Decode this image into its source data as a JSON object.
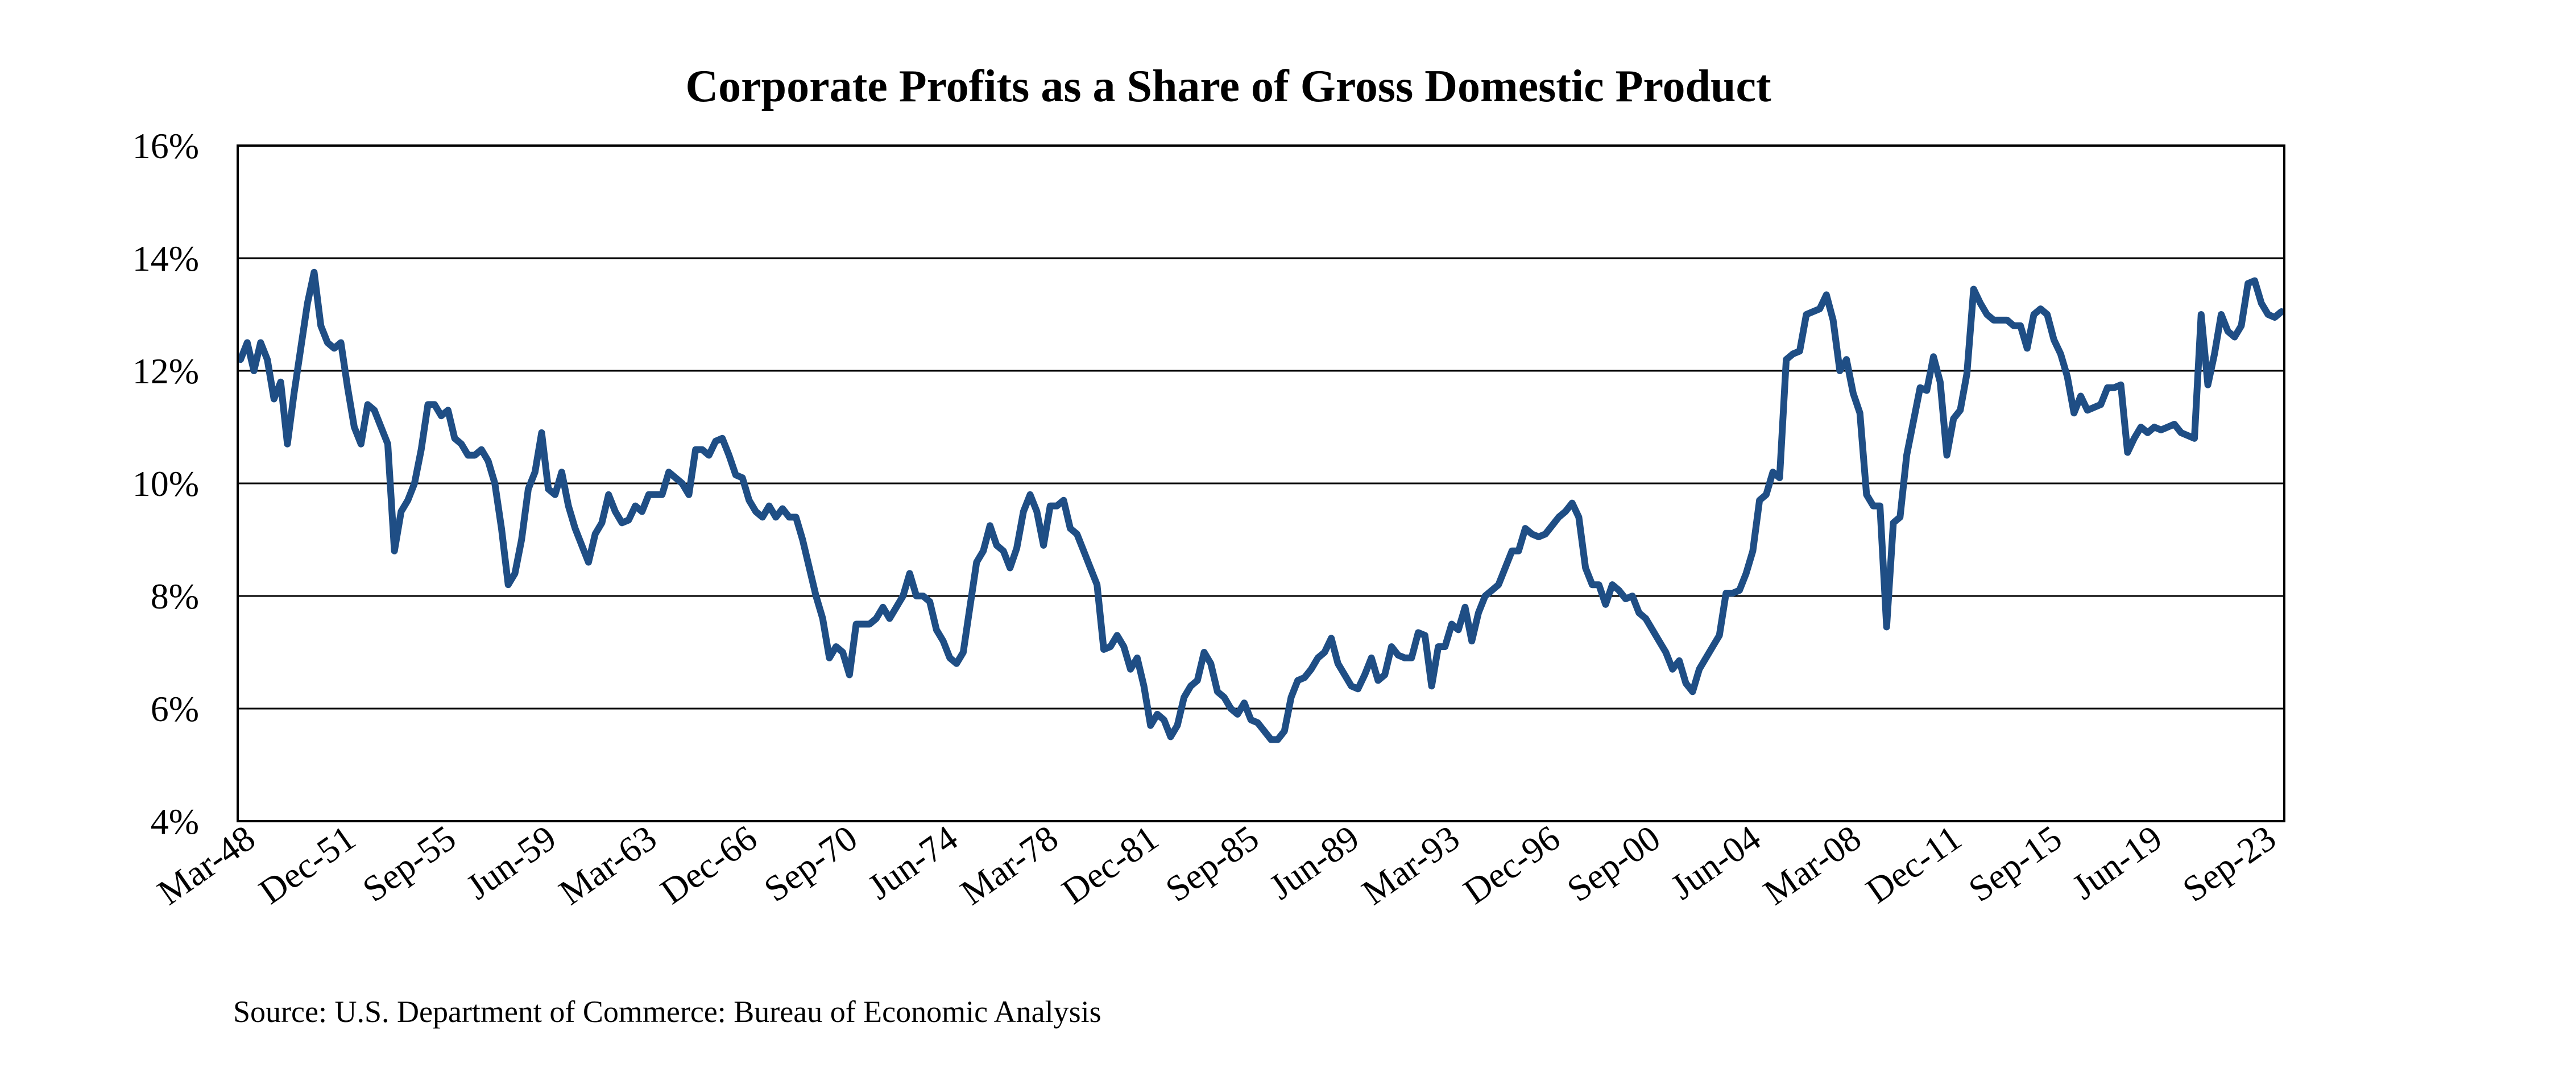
{
  "colors": {
    "line": "#1F4E85",
    "grid": "#000000",
    "background": "#ffffff"
  },
  "source": "Source: U.S. Department of Commerce: Bureau of Economic Analysis",
  "chart_data": {
    "type": "line",
    "title": "Corporate Profits as a Share of Gross Domestic Product",
    "xlabel": "",
    "ylabel": "",
    "ylim": [
      4,
      16
    ],
    "y_ticks": [
      4,
      6,
      8,
      10,
      12,
      14,
      16
    ],
    "y_tick_labels": [
      "4%",
      "6%",
      "8%",
      "10%",
      "12%",
      "14%",
      "16%"
    ],
    "x_tick_labels": [
      "Mar-48",
      "Dec-51",
      "Sep-55",
      "Jun-59",
      "Mar-63",
      "Dec-66",
      "Sep-70",
      "Jun-74",
      "Mar-78",
      "Dec-81",
      "Sep-85",
      "Jun-89",
      "Mar-93",
      "Dec-96",
      "Sep-00",
      "Jun-04",
      "Mar-08",
      "Dec-11",
      "Sep-15",
      "Jun-19",
      "Sep-23"
    ],
    "x_tick_index": [
      0,
      15,
      30,
      45,
      60,
      75,
      90,
      105,
      120,
      135,
      150,
      165,
      180,
      195,
      210,
      225,
      240,
      255,
      270,
      285,
      302
    ],
    "grid": true,
    "legend": "none",
    "series": [
      {
        "name": "Corporate Profits / GDP (%)",
        "x_start": "Mar-48",
        "frequency": "quarterly",
        "values": [
          12.2,
          12.5,
          12.0,
          12.5,
          12.2,
          11.5,
          11.8,
          10.7,
          11.6,
          12.4,
          13.2,
          13.75,
          12.8,
          12.5,
          12.4,
          12.5,
          11.7,
          11.0,
          10.7,
          11.4,
          11.3,
          11.0,
          10.7,
          8.8,
          9.5,
          9.7,
          10.0,
          10.6,
          11.4,
          11.4,
          11.2,
          11.3,
          10.8,
          10.7,
          10.5,
          10.5,
          10.6,
          10.4,
          10.0,
          9.2,
          8.2,
          8.4,
          9.0,
          9.9,
          10.2,
          10.9,
          9.9,
          9.8,
          10.2,
          9.6,
          9.2,
          8.9,
          8.6,
          9.1,
          9.3,
          9.8,
          9.5,
          9.3,
          9.35,
          9.6,
          9.5,
          9.8,
          9.8,
          9.8,
          10.2,
          10.1,
          10.0,
          9.8,
          10.6,
          10.6,
          10.5,
          10.75,
          10.8,
          10.5,
          10.15,
          10.1,
          9.7,
          9.5,
          9.4,
          9.6,
          9.4,
          9.55,
          9.4,
          9.4,
          9.0,
          8.5,
          8.0,
          7.6,
          6.9,
          7.1,
          7.0,
          6.6,
          7.5,
          7.5,
          7.5,
          7.6,
          7.8,
          7.6,
          7.8,
          8.0,
          8.4,
          8.0,
          8.0,
          7.9,
          7.4,
          7.2,
          6.9,
          6.8,
          7.0,
          7.8,
          8.6,
          8.8,
          9.25,
          8.9,
          8.8,
          8.5,
          8.85,
          9.5,
          9.8,
          9.5,
          8.9,
          9.6,
          9.6,
          9.7,
          9.2,
          9.1,
          8.8,
          8.5,
          8.2,
          7.05,
          7.1,
          7.3,
          7.1,
          6.7,
          6.9,
          6.4,
          5.7,
          5.9,
          5.8,
          5.5,
          5.7,
          6.2,
          6.4,
          6.5,
          7.0,
          6.8,
          6.3,
          6.2,
          6.0,
          5.9,
          6.1,
          5.8,
          5.75,
          5.6,
          5.45,
          5.45,
          5.6,
          6.2,
          6.5,
          6.55,
          6.7,
          6.9,
          7.0,
          7.25,
          6.8,
          6.6,
          6.4,
          6.35,
          6.6,
          6.9,
          6.5,
          6.6,
          7.1,
          6.95,
          6.9,
          6.9,
          7.35,
          7.3,
          6.4,
          7.1,
          7.1,
          7.5,
          7.4,
          7.8,
          7.2,
          7.7,
          8.0,
          8.1,
          8.2,
          8.5,
          8.8,
          8.8,
          9.2,
          9.1,
          9.05,
          9.1,
          9.25,
          9.4,
          9.5,
          9.65,
          9.4,
          8.5,
          8.2,
          8.2,
          7.85,
          8.2,
          8.1,
          7.95,
          8.0,
          7.7,
          7.6,
          7.4,
          7.2,
          7.0,
          6.7,
          6.85,
          6.45,
          6.3,
          6.7,
          6.9,
          7.1,
          7.3,
          8.05,
          8.05,
          8.1,
          8.4,
          8.8,
          9.7,
          9.8,
          10.2,
          10.1,
          12.2,
          12.3,
          12.35,
          13.0,
          13.05,
          13.1,
          13.35,
          12.9,
          12.0,
          12.2,
          11.6,
          11.25,
          9.8,
          9.6,
          9.6,
          7.45,
          9.3,
          9.4,
          10.5,
          11.1,
          11.7,
          11.65,
          12.25,
          11.8,
          10.5,
          11.15,
          11.3,
          11.95,
          13.45,
          13.2,
          13.0,
          12.9,
          12.9,
          12.9,
          12.8,
          12.8,
          12.4,
          13.0,
          13.1,
          13.0,
          12.55,
          12.3,
          11.9,
          11.25,
          11.55,
          11.3,
          11.35,
          11.4,
          11.7,
          11.7,
          11.75,
          10.55,
          10.8,
          11.0,
          10.9,
          11.0,
          10.95,
          11.0,
          11.05,
          10.9,
          10.85,
          10.8,
          13.0,
          11.75,
          12.3,
          13.0,
          12.7,
          12.6,
          12.8,
          13.55,
          13.6,
          13.2,
          13.0,
          12.95,
          13.05
        ]
      }
    ]
  }
}
